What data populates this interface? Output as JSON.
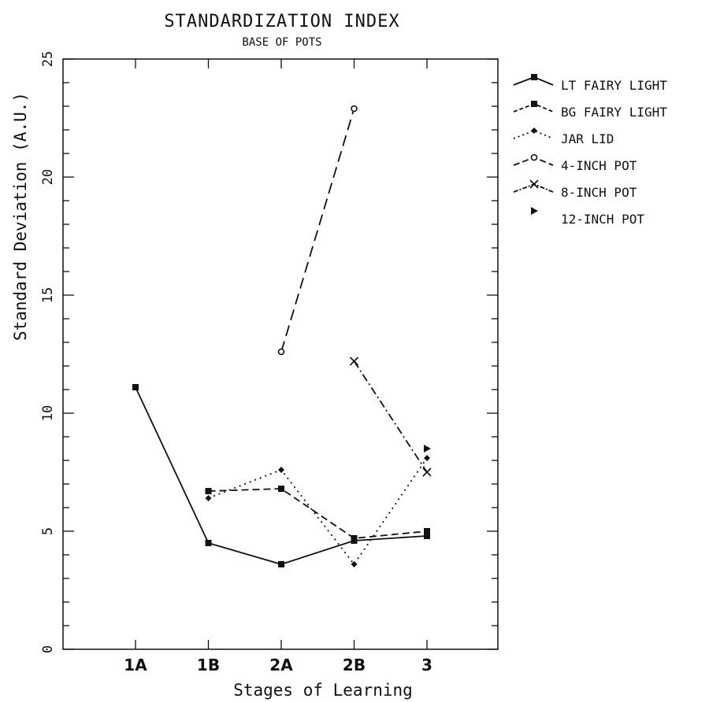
{
  "chart_data": {
    "type": "line",
    "title": "STANDARDIZATION INDEX",
    "subtitle": "BASE OF POTS",
    "xlabel": "Stages of Learning",
    "ylabel": "Standard Deviation (A.U.)",
    "categories": [
      "1A",
      "1B",
      "2A",
      "2B",
      "3"
    ],
    "ylim": [
      0,
      25
    ],
    "yticks": [
      0,
      5,
      10,
      15,
      20,
      25
    ],
    "grid": false,
    "legend_position": "right",
    "series": [
      {
        "name": "LT FAIRY LIGHT",
        "line": "solid",
        "marker": "square",
        "values": [
          11.1,
          4.5,
          3.6,
          4.6,
          4.8
        ]
      },
      {
        "name": "BG FAIRY LIGHT",
        "line": "dashed",
        "marker": "square",
        "values": [
          null,
          6.7,
          6.8,
          4.7,
          5.0
        ]
      },
      {
        "name": "JAR LID",
        "line": "dotted",
        "marker": "diamond",
        "values": [
          null,
          6.4,
          7.6,
          3.6,
          8.1
        ]
      },
      {
        "name": "4-INCH POT",
        "line": "longdash",
        "marker": "circle",
        "values": [
          null,
          null,
          12.6,
          22.9,
          null
        ]
      },
      {
        "name": "8-INCH POT",
        "line": "dashdot",
        "marker": "x",
        "values": [
          null,
          null,
          null,
          12.2,
          7.5
        ]
      },
      {
        "name": "12-INCH POT",
        "line": "none",
        "marker": "triangle",
        "values": [
          null,
          null,
          null,
          null,
          8.5
        ]
      }
    ]
  }
}
